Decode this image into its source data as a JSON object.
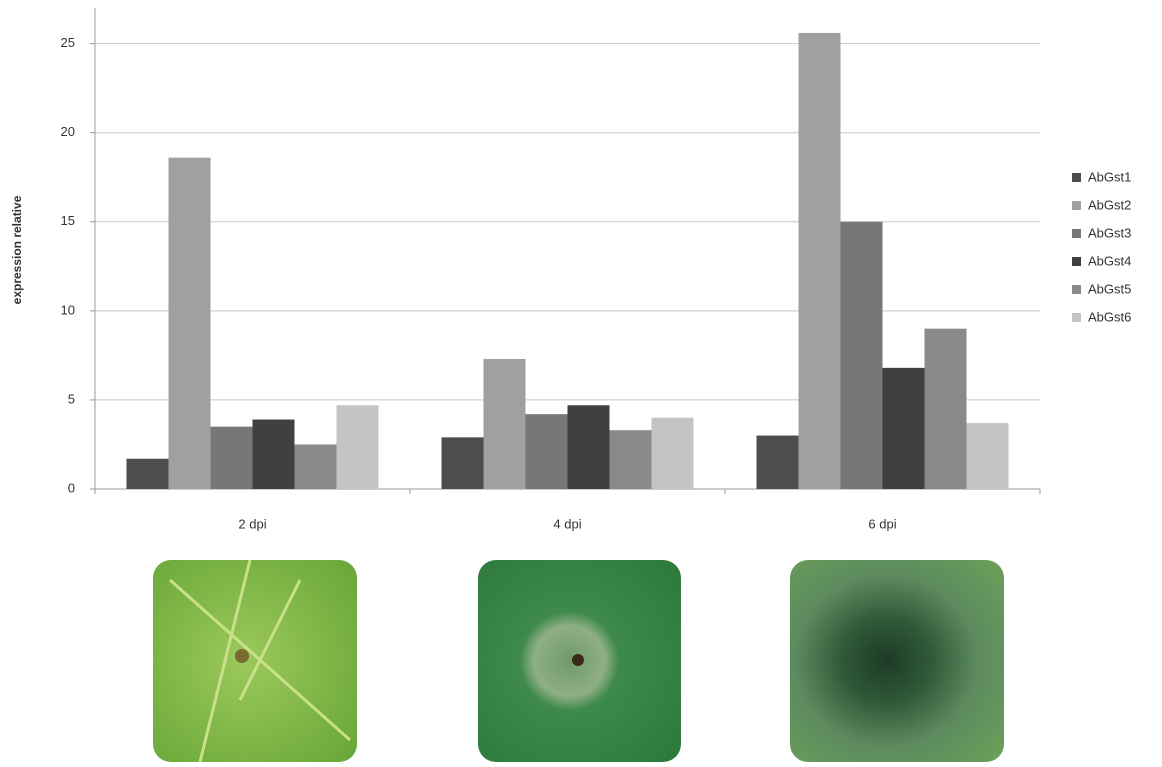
{
  "chart_data": {
    "type": "bar",
    "y_label": "expression relative",
    "categories": [
      "2 dpi",
      "4 dpi",
      "6 dpi"
    ],
    "series": [
      {
        "name": "AbGst1",
        "color": "#4d4d4d",
        "values": [
          1.7,
          2.9,
          3.0
        ]
      },
      {
        "name": "AbGst2",
        "color": "#a0a0a0",
        "values": [
          18.6,
          7.3,
          25.6
        ]
      },
      {
        "name": "AbGst3",
        "color": "#777777",
        "values": [
          3.5,
          4.2,
          15.0
        ]
      },
      {
        "name": "AbGst4",
        "color": "#404040",
        "values": [
          3.9,
          4.7,
          6.8
        ]
      },
      {
        "name": "AbGst5",
        "color": "#8a8a8a",
        "values": [
          2.5,
          3.3,
          9.0
        ]
      },
      {
        "name": "AbGst6",
        "color": "#c4c4c4",
        "values": [
          4.7,
          4.0,
          3.7
        ]
      }
    ],
    "ylim": [
      0,
      27
    ],
    "yticks": [
      0,
      5,
      10,
      15,
      20,
      25
    ],
    "grid": true,
    "legend": "right"
  }
}
